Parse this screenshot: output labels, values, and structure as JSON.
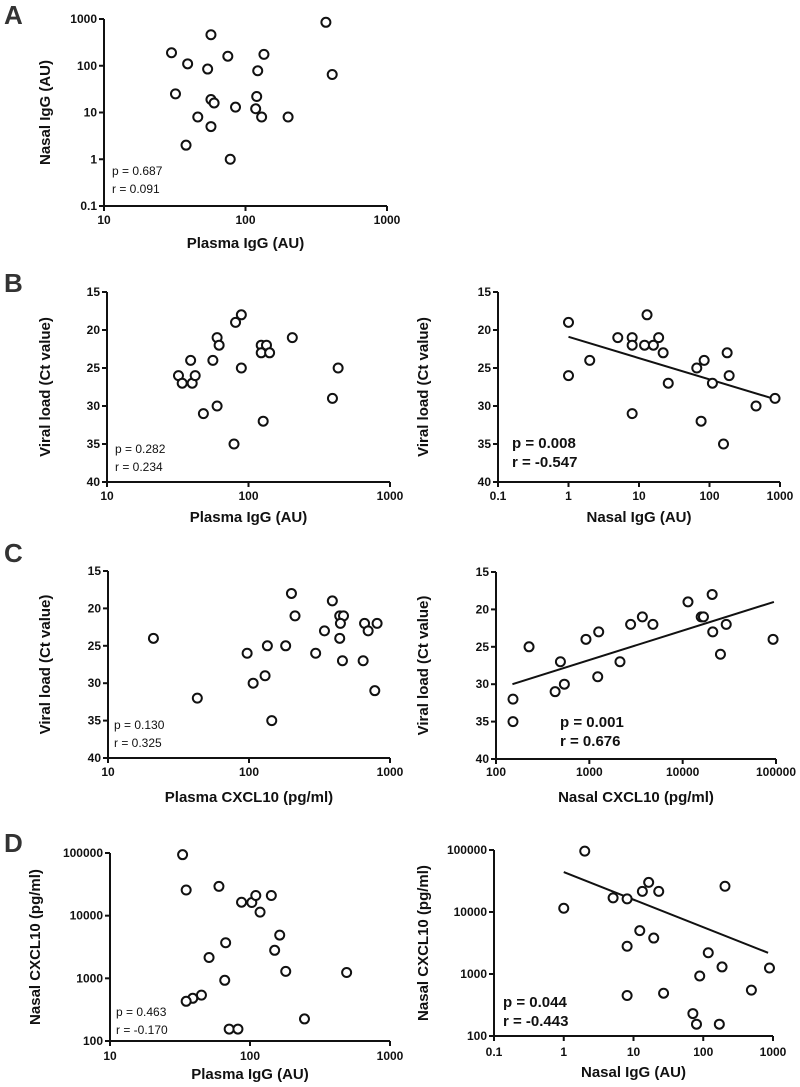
{
  "panel_labels": [
    "A",
    "B",
    "C",
    "D"
  ],
  "chart_data": [
    {
      "panel": "A",
      "type": "scatter",
      "xlabel": "Plasma IgG (AU)",
      "ylabel": "Nasal IgG (AU)",
      "xscale": "log",
      "yscale": "log",
      "xlim": [
        10,
        1000
      ],
      "ylim": [
        0.1,
        1000
      ],
      "y_inverted": false,
      "xticks": [
        "10",
        "100",
        "1000"
      ],
      "yticks": [
        "0.1",
        "1",
        "10",
        "100",
        "1000"
      ],
      "stats": {
        "p": "p = 0.687",
        "r": "r = 0.091"
      },
      "regression": null,
      "points": [
        [
          30,
          190
        ],
        [
          39,
          110
        ],
        [
          54,
          85
        ],
        [
          57,
          460
        ],
        [
          75,
          160
        ],
        [
          135,
          175
        ],
        [
          122,
          78
        ],
        [
          370,
          850
        ],
        [
          410,
          65
        ],
        [
          32,
          25
        ],
        [
          57,
          19
        ],
        [
          60,
          16
        ],
        [
          85,
          13
        ],
        [
          120,
          22
        ],
        [
          118,
          12
        ],
        [
          130,
          8
        ],
        [
          200,
          8
        ],
        [
          46,
          8
        ],
        [
          57,
          5
        ],
        [
          38,
          2
        ],
        [
          78,
          1
        ]
      ]
    },
    {
      "panel": "B",
      "type": "scatter",
      "xlabel": "Plasma IgG  (AU)",
      "ylabel": "Viral load  (Ct value)",
      "xscale": "log",
      "yscale": "linear",
      "xlim": [
        10,
        1000
      ],
      "ylim": [
        15,
        40
      ],
      "y_inverted": true,
      "xticks": [
        "10",
        "100",
        "1000"
      ],
      "yticks": [
        "15",
        "20",
        "25",
        "30",
        "35",
        "40"
      ],
      "stats": {
        "p": "p = 0.282",
        "r": "r = 0.234"
      },
      "regression": null,
      "points": [
        [
          32,
          26
        ],
        [
          34,
          27
        ],
        [
          39,
          24
        ],
        [
          40,
          27
        ],
        [
          42,
          26
        ],
        [
          48,
          31
        ],
        [
          56,
          24
        ],
        [
          60,
          21
        ],
        [
          62,
          22
        ],
        [
          60,
          30
        ],
        [
          81,
          19
        ],
        [
          89,
          18
        ],
        [
          89,
          25
        ],
        [
          79,
          35
        ],
        [
          123,
          22
        ],
        [
          134,
          22
        ],
        [
          123,
          23
        ],
        [
          141,
          23
        ],
        [
          127,
          32
        ],
        [
          204,
          21
        ],
        [
          392,
          29
        ],
        [
          430,
          25
        ]
      ]
    },
    {
      "panel": "B",
      "type": "scatter",
      "xlabel": "Nasal IgG (AU)",
      "ylabel": "Viral load  (Ct value)",
      "xscale": "log",
      "yscale": "linear",
      "xlim": [
        0.1,
        1000
      ],
      "ylim": [
        15,
        40
      ],
      "y_inverted": true,
      "xticks": [
        "0.1",
        "1",
        "10",
        "100",
        "1000"
      ],
      "yticks": [
        "15",
        "20",
        "25",
        "30",
        "35",
        "40"
      ],
      "stats": {
        "p": "p = 0.008",
        "r": "r = -0.547"
      },
      "regression": [
        [
          1,
          20.9
        ],
        [
          850,
          29.1
        ]
      ],
      "points": [
        [
          1,
          19
        ],
        [
          1,
          26
        ],
        [
          2,
          24
        ],
        [
          5,
          21
        ],
        [
          8,
          21
        ],
        [
          8,
          22
        ],
        [
          8,
          31
        ],
        [
          13,
          18
        ],
        [
          12,
          22
        ],
        [
          16,
          22
        ],
        [
          19,
          21
        ],
        [
          22,
          23
        ],
        [
          26,
          27
        ],
        [
          66,
          25
        ],
        [
          84,
          24
        ],
        [
          76,
          32
        ],
        [
          110,
          27
        ],
        [
          178,
          23
        ],
        [
          190,
          26
        ],
        [
          158,
          35
        ],
        [
          457,
          30
        ],
        [
          850,
          29
        ]
      ]
    },
    {
      "panel": "C",
      "type": "scatter",
      "xlabel": "Plasma CXCL10 (pg/ml)",
      "ylabel": "Viral load  (Ct value)",
      "xscale": "log",
      "yscale": "linear",
      "xlim": [
        10,
        1000
      ],
      "ylim": [
        15,
        40
      ],
      "y_inverted": true,
      "xticks": [
        "10",
        "100",
        "1000"
      ],
      "yticks": [
        "15",
        "20",
        "25",
        "30",
        "35",
        "40"
      ],
      "stats": {
        "p": "p = 0.130",
        "r": "r = 0.325"
      },
      "regression": null,
      "points": [
        [
          21,
          24
        ],
        [
          43,
          32
        ],
        [
          97,
          26
        ],
        [
          107,
          30
        ],
        [
          130,
          29
        ],
        [
          135,
          25
        ],
        [
          145,
          35
        ],
        [
          182,
          25
        ],
        [
          200,
          18
        ],
        [
          212,
          21
        ],
        [
          297,
          26
        ],
        [
          343,
          23
        ],
        [
          390,
          19
        ],
        [
          440,
          21
        ],
        [
          468,
          21
        ],
        [
          445,
          22
        ],
        [
          440,
          24
        ],
        [
          460,
          27
        ],
        [
          645,
          27
        ],
        [
          660,
          22
        ],
        [
          700,
          23
        ],
        [
          810,
          22
        ],
        [
          780,
          31
        ]
      ]
    },
    {
      "panel": "C",
      "type": "scatter",
      "xlabel": "Nasal CXCL10 (pg/ml)",
      "ylabel": "Viral load  (Ct value)",
      "xscale": "log",
      "yscale": "linear",
      "xlim": [
        100,
        100000
      ],
      "ylim": [
        15,
        40
      ],
      "y_inverted": true,
      "xticks": [
        "100",
        "1000",
        "10000",
        "100000"
      ],
      "yticks": [
        "15",
        "20",
        "25",
        "30",
        "35",
        "40"
      ],
      "stats": {
        "p": "p = 0.001",
        "r": "r = 0.676"
      },
      "regression": [
        [
          150,
          30
        ],
        [
          95000,
          19
        ]
      ],
      "points": [
        [
          152,
          32
        ],
        [
          152,
          35
        ],
        [
          226,
          25
        ],
        [
          430,
          31
        ],
        [
          490,
          27
        ],
        [
          540,
          30
        ],
        [
          920,
          24
        ],
        [
          1260,
          23
        ],
        [
          1230,
          29
        ],
        [
          2130,
          27
        ],
        [
          2770,
          22
        ],
        [
          3700,
          21
        ],
        [
          4800,
          22
        ],
        [
          11400,
          19
        ],
        [
          15800,
          21
        ],
        [
          16700,
          21
        ],
        [
          20700,
          18
        ],
        [
          21000,
          23
        ],
        [
          25400,
          26
        ],
        [
          29300,
          22
        ],
        [
          93000,
          24
        ]
      ]
    },
    {
      "panel": "D",
      "type": "scatter",
      "xlabel": "Plasma IgG (AU)",
      "ylabel": "Nasal CXCL10 (pg/ml)",
      "xscale": "log",
      "yscale": "log",
      "xlim": [
        10,
        1000
      ],
      "ylim": [
        100,
        100000
      ],
      "y_inverted": false,
      "xticks": [
        "10",
        "100",
        "1000"
      ],
      "yticks": [
        "100",
        "1000",
        "10000",
        "100000"
      ],
      "stats": {
        "p": "p = 0.463",
        "r": "r = -0.170"
      },
      "regression": null,
      "points": [
        [
          33,
          94000
        ],
        [
          35,
          25700
        ],
        [
          60,
          29300
        ],
        [
          87,
          16400
        ],
        [
          103,
          16200
        ],
        [
          110,
          21000
        ],
        [
          118,
          11400
        ],
        [
          142,
          21000
        ],
        [
          163,
          4900
        ],
        [
          150,
          2800
        ],
        [
          180,
          1290
        ],
        [
          490,
          1240
        ],
        [
          67,
          3700
        ],
        [
          51,
          2150
        ],
        [
          66,
          930
        ],
        [
          45,
          540
        ],
        [
          39,
          480
        ],
        [
          35,
          430
        ],
        [
          71,
          155
        ],
        [
          82,
          155
        ],
        [
          245,
          225
        ]
      ]
    },
    {
      "panel": "D",
      "type": "scatter",
      "xlabel": "Nasal IgG (AU)",
      "ylabel": "Nasal CXCL10 (pg/ml)",
      "xscale": "log",
      "yscale": "log",
      "xlim": [
        0.1,
        1000
      ],
      "ylim": [
        100,
        100000
      ],
      "y_inverted": false,
      "xticks": [
        "0.1",
        "1",
        "10",
        "100",
        "1000"
      ],
      "yticks": [
        "100",
        "1000",
        "10000",
        "100000"
      ],
      "stats": {
        "p": "p = 0.044",
        "r": "r = -0.443"
      },
      "regression": [
        [
          1,
          44000
        ],
        [
          850,
          2200
        ]
      ],
      "points": [
        [
          1,
          11500
        ],
        [
          2,
          96000
        ],
        [
          5.1,
          16900
        ],
        [
          8.1,
          16300
        ],
        [
          13.4,
          21500
        ],
        [
          16.5,
          30000
        ],
        [
          23,
          21500
        ],
        [
          205,
          26000
        ],
        [
          12.3,
          5000
        ],
        [
          19.5,
          3800
        ],
        [
          8.1,
          2800
        ],
        [
          118,
          2200
        ],
        [
          186,
          1300
        ],
        [
          89,
          930
        ],
        [
          890,
          1250
        ],
        [
          490,
          550
        ],
        [
          8.1,
          450
        ],
        [
          27,
          490
        ],
        [
          71,
          230
        ],
        [
          80,
          155
        ],
        [
          170,
          155
        ]
      ]
    }
  ]
}
